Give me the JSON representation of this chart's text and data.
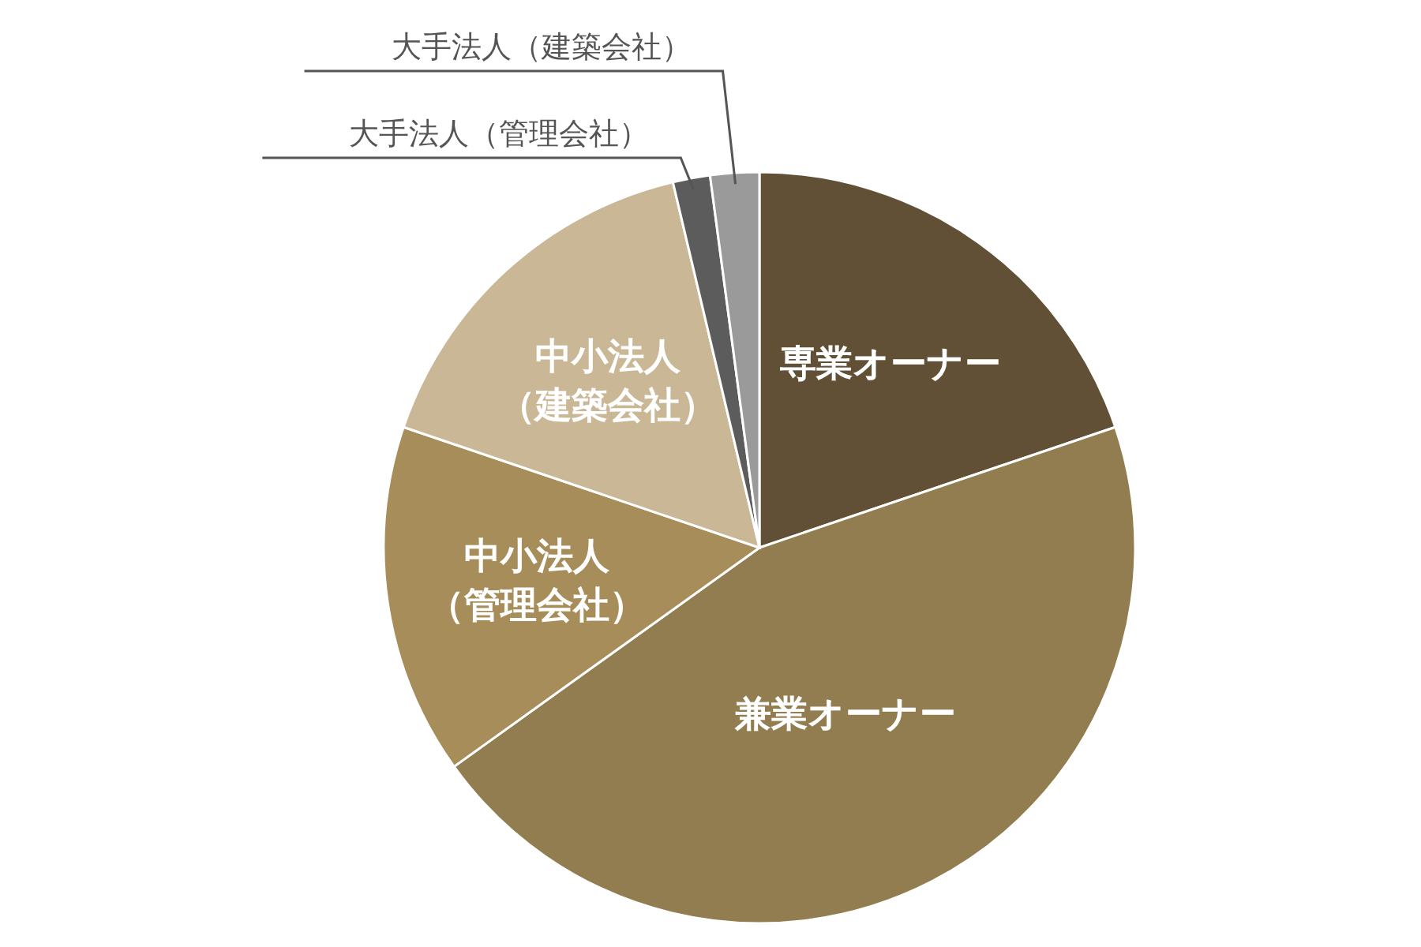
{
  "chart_data": {
    "type": "pie",
    "categories": [
      "専業オーナー",
      "兼業オーナー",
      "中小法人（管理会社）",
      "中小法人（建築会社）",
      "大手法人（管理会社）",
      "大手法人（建築会社）"
    ],
    "values": [
      19.8,
      45.3,
      15.1,
      16.1,
      1.6,
      2.1
    ],
    "colors": [
      "#625036",
      "#917d4f",
      "#a68d59",
      "#c9b796",
      "#5c5c5c",
      "#9a9a9a"
    ]
  }
}
